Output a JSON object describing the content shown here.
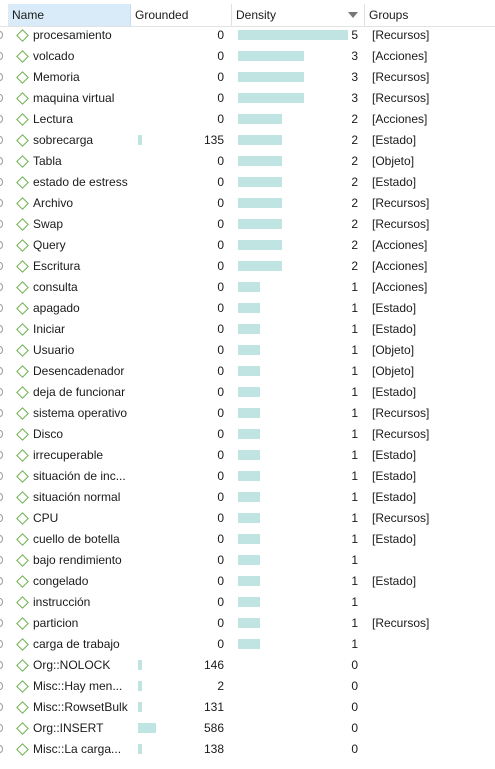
{
  "columns": {
    "name": "Name",
    "grounded": "Grounded",
    "density": "Density",
    "groups": "Groups"
  },
  "rows": [
    {
      "name": "procesamiento",
      "grounded": "0",
      "density": "5",
      "groups": "[Recursos]"
    },
    {
      "name": "volcado",
      "grounded": "0",
      "density": "3",
      "groups": "[Acciones]"
    },
    {
      "name": "Memoria",
      "grounded": "0",
      "density": "3",
      "groups": "[Recursos]"
    },
    {
      "name": "maquina virtual",
      "grounded": "0",
      "density": "3",
      "groups": "[Recursos]"
    },
    {
      "name": "Lectura",
      "grounded": "0",
      "density": "2",
      "groups": "[Acciones]"
    },
    {
      "name": "sobrecarga",
      "grounded": "135",
      "density": "2",
      "groups": "[Estado]"
    },
    {
      "name": "Tabla",
      "grounded": "0",
      "density": "2",
      "groups": "[Objeto]"
    },
    {
      "name": "estado de estress",
      "grounded": "0",
      "density": "2",
      "groups": "[Estado]"
    },
    {
      "name": "Archivo",
      "grounded": "0",
      "density": "2",
      "groups": "[Recursos]"
    },
    {
      "name": "Swap",
      "grounded": "0",
      "density": "2",
      "groups": "[Recursos]"
    },
    {
      "name": "Query",
      "grounded": "0",
      "density": "2",
      "groups": "[Acciones]"
    },
    {
      "name": "Escritura",
      "grounded": "0",
      "density": "2",
      "groups": "[Acciones]"
    },
    {
      "name": "consulta",
      "grounded": "0",
      "density": "1",
      "groups": "[Acciones]"
    },
    {
      "name": "apagado",
      "grounded": "0",
      "density": "1",
      "groups": "[Estado]"
    },
    {
      "name": "Iniciar",
      "grounded": "0",
      "density": "1",
      "groups": "[Estado]"
    },
    {
      "name": "Usuario",
      "grounded": "0",
      "density": "1",
      "groups": "[Objeto]"
    },
    {
      "name": "Desencadenador",
      "grounded": "0",
      "density": "1",
      "groups": "[Objeto]"
    },
    {
      "name": "deja de funcionar",
      "grounded": "0",
      "density": "1",
      "groups": "[Estado]"
    },
    {
      "name": "sistema operativo",
      "grounded": "0",
      "density": "1",
      "groups": "[Recursos]"
    },
    {
      "name": "Disco",
      "grounded": "0",
      "density": "1",
      "groups": "[Recursos]"
    },
    {
      "name": "irrecuperable",
      "grounded": "0",
      "density": "1",
      "groups": "[Estado]"
    },
    {
      "name": "situación de inc...",
      "grounded": "0",
      "density": "1",
      "groups": "[Estado]"
    },
    {
      "name": "situación normal",
      "grounded": "0",
      "density": "1",
      "groups": "[Estado]"
    },
    {
      "name": "CPU",
      "grounded": "0",
      "density": "1",
      "groups": "[Recursos]"
    },
    {
      "name": "cuello de botella",
      "grounded": "0",
      "density": "1",
      "groups": "[Estado]"
    },
    {
      "name": "bajo rendimiento",
      "grounded": "0",
      "density": "1",
      "groups": ""
    },
    {
      "name": "congelado",
      "grounded": "0",
      "density": "1",
      "groups": "[Estado]"
    },
    {
      "name": "instrucción",
      "grounded": "0",
      "density": "1",
      "groups": ""
    },
    {
      "name": "particion",
      "grounded": "0",
      "density": "1",
      "groups": "[Recursos]"
    },
    {
      "name": "carga de trabajo",
      "grounded": "0",
      "density": "1",
      "groups": ""
    },
    {
      "name": "Org::NOLOCK",
      "grounded": "146",
      "density": "0",
      "groups": ""
    },
    {
      "name": "Misc::Hay men...",
      "grounded": "2",
      "density": "0",
      "groups": ""
    },
    {
      "name": "Misc::RowsetBulk",
      "grounded": "131",
      "density": "0",
      "groups": ""
    },
    {
      "name": "Org::INSERT",
      "grounded": "586",
      "density": "0",
      "groups": ""
    },
    {
      "name": "Misc::La carga...",
      "grounded": "138",
      "density": "0",
      "groups": ""
    }
  ],
  "colors": {
    "bar": "#bfe4e1",
    "code_icon": "#6ab04c",
    "header_selected": "#d9ebf9"
  },
  "icons": {
    "code": "diamond-code-icon",
    "sort": "sort-descending-icon"
  }
}
